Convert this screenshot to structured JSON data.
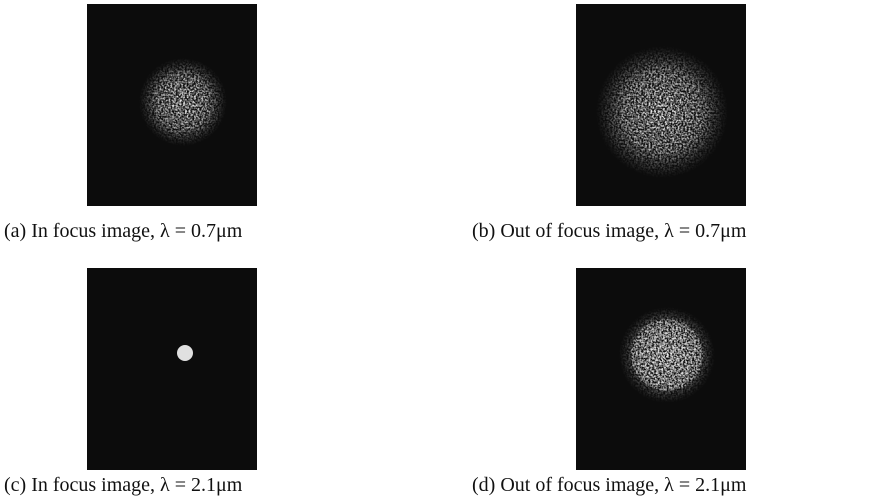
{
  "panels": [
    {
      "caption": "(a) In focus image, λ = 0.7μm"
    },
    {
      "caption": "(b) Out of focus image, λ = 0.7μm"
    },
    {
      "caption": "(c) In focus image, λ = 2.1μm"
    },
    {
      "caption": "(d) Out of focus image, λ = 2.1μm"
    }
  ]
}
